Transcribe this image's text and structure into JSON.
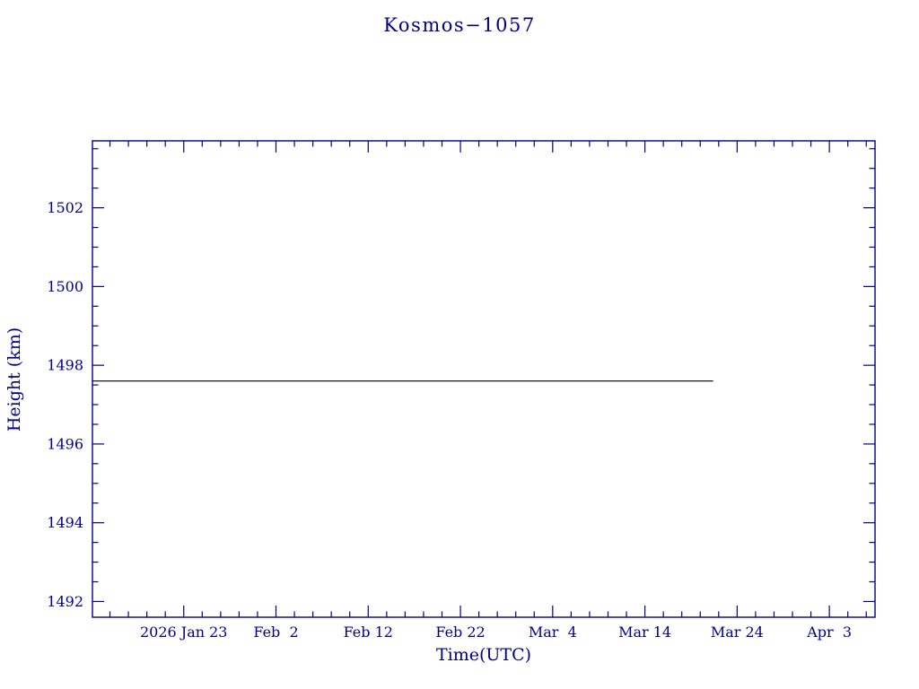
{
  "colors": {
    "axis": "#00008b",
    "text": "#00008b",
    "series_line": "#000000",
    "background": "#ffffff"
  },
  "chart_data": {
    "type": "line",
    "title": "Kosmos−1057",
    "xlabel": "Time(UTC)",
    "ylabel": "Height (km)",
    "grid": false,
    "legend": null,
    "x_axis": {
      "unit": "days relative to 2026 Jan 23",
      "ticks": [
        {
          "label": "2026 Jan 23",
          "day": 0
        },
        {
          "label": "Feb  2",
          "day": 10
        },
        {
          "label": "Feb 12",
          "day": 20
        },
        {
          "label": "Feb 22",
          "day": 30
        },
        {
          "label": "Mar  4",
          "day": 40
        },
        {
          "label": "Mar 14",
          "day": 50
        },
        {
          "label": "Mar 24",
          "day": 60
        },
        {
          "label": "Apr  3",
          "day": 70
        }
      ],
      "minor_tick_step_days": 2,
      "xlim_days": [
        -9.9,
        74.95
      ]
    },
    "y_axis": {
      "ticks": [
        1492,
        1494,
        1496,
        1498,
        1500,
        1502
      ],
      "minor_tick_step_km": 0.5,
      "ylim": [
        1491.6,
        1503.7
      ]
    },
    "series": [
      {
        "name": "orbit-height",
        "color": "#000000",
        "points": [
          {
            "day": -9.9,
            "height_km": 1497.6
          },
          {
            "day": 57.4,
            "height_km": 1497.6
          }
        ]
      }
    ]
  }
}
